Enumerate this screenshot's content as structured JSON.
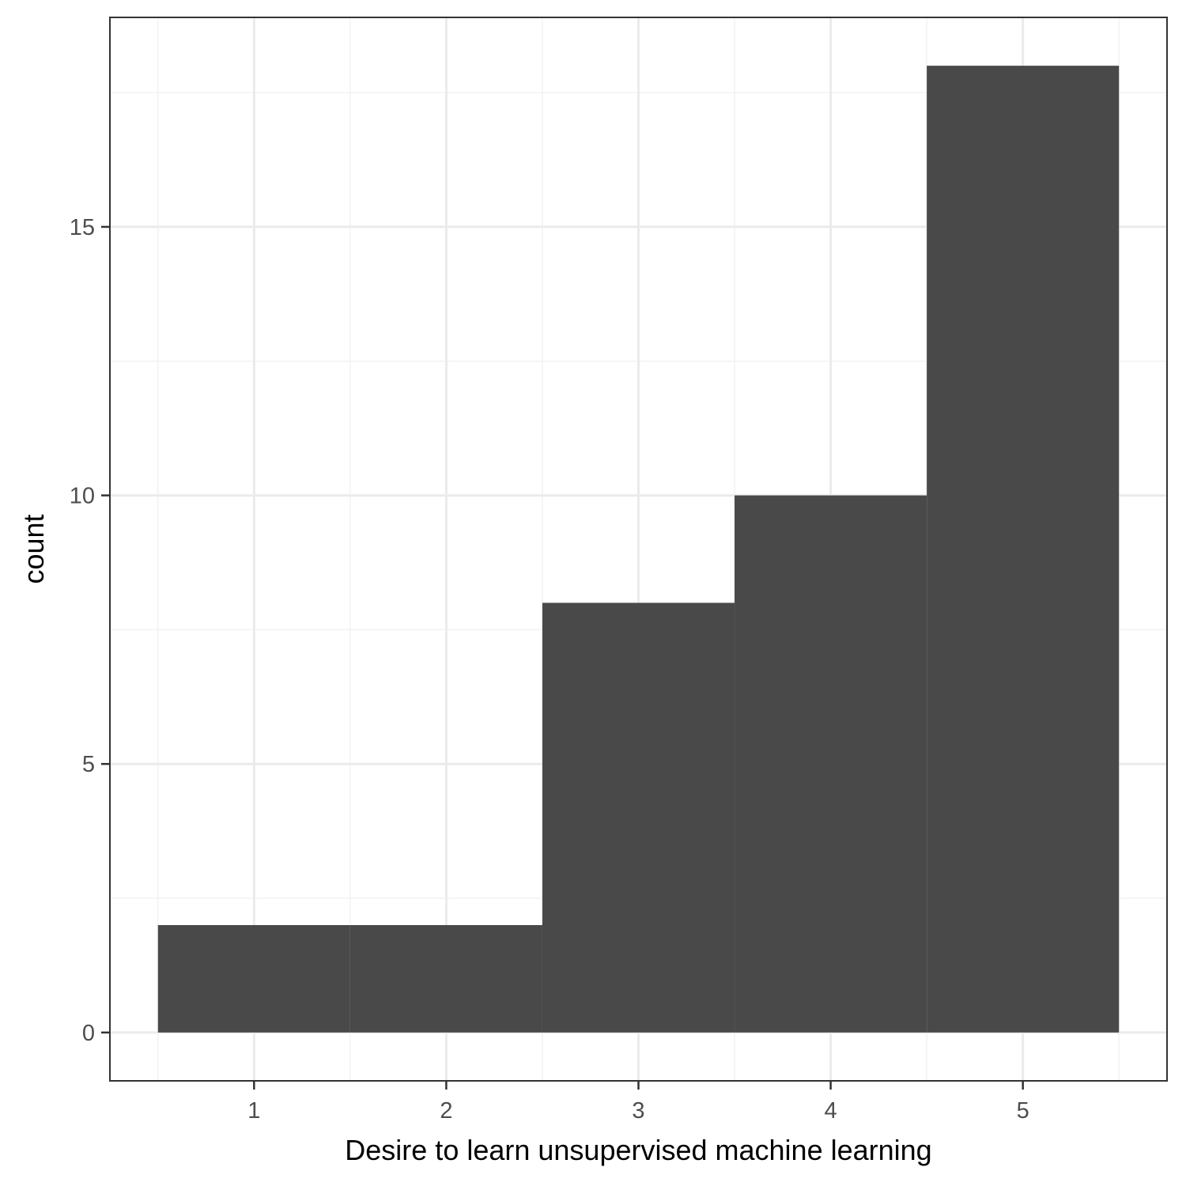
{
  "chart_data": {
    "type": "bar",
    "categories": [
      "1",
      "2",
      "3",
      "4",
      "5"
    ],
    "x": [
      1,
      2,
      3,
      4,
      5
    ],
    "values": [
      2,
      2,
      8,
      10,
      18
    ],
    "bin_width": 1,
    "title": "",
    "xlabel": "Desire to learn unsupervised machine learning",
    "ylabel": "count",
    "xlim": [
      0.25,
      5.75
    ],
    "ylim": [
      -0.9,
      18.9
    ],
    "x_ticks": [
      1,
      2,
      3,
      4,
      5
    ],
    "y_ticks": [
      0,
      5,
      10,
      15
    ],
    "grid": true,
    "legend": "none",
    "colors": {
      "bar": "#494949",
      "panel_border": "#333333",
      "grid_major": "#ebebeb",
      "grid_minor": "#f2f2f2",
      "background": "#ffffff"
    }
  }
}
